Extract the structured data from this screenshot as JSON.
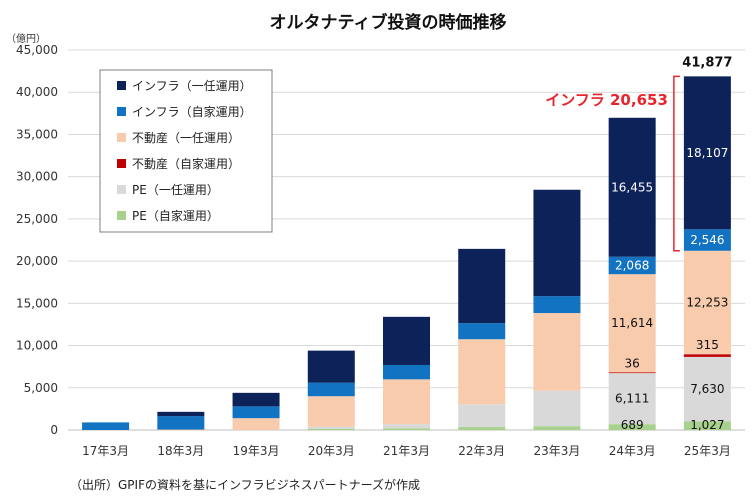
{
  "chart_data": {
    "type": "bar",
    "stacked": true,
    "title": "オルタナティブ投資の時価推移",
    "unit_label": "（億円）",
    "categories": [
      "17年3月",
      "18年3月",
      "19年3月",
      "20年3月",
      "21年3月",
      "22年3月",
      "23年3月",
      "24年3月",
      "25年3月"
    ],
    "ylim": [
      0,
      45000
    ],
    "yticks": [
      "0",
      "5,000",
      "10,000",
      "15,000",
      "20,000",
      "25,000",
      "30,000",
      "35,000",
      "40,000",
      "45,000"
    ],
    "grid": true,
    "legend_position": "top-left",
    "series": [
      {
        "name": "PE（自家運用）",
        "color": "#a9d18e",
        "values": [
          0,
          0,
          0,
          150,
          200,
          350,
          450,
          689,
          1027
        ]
      },
      {
        "name": "PE（一任運用）",
        "color": "#d9d9d9",
        "values": [
          0,
          0,
          0,
          250,
          500,
          2700,
          4200,
          6111,
          7630
        ]
      },
      {
        "name": "不動産（自家運用）",
        "color": "#c00000",
        "values": [
          0,
          0,
          0,
          0,
          0,
          0,
          0,
          36,
          315
        ]
      },
      {
        "name": "不動産（一任運用）",
        "color": "#f8cbad",
        "values": [
          0,
          50,
          1400,
          3600,
          5300,
          7700,
          9200,
          11614,
          12253
        ]
      },
      {
        "name": "インフラ（自家運用）",
        "color": "#1273c2",
        "values": [
          900,
          1600,
          1400,
          1600,
          1700,
          1900,
          2000,
          2068,
          2546
        ]
      },
      {
        "name": "インフラ（一任運用）",
        "color": "#0d2259",
        "values": [
          0,
          500,
          1600,
          3800,
          5700,
          8800,
          12600,
          16455,
          18107
        ]
      }
    ],
    "data_labels": [
      {
        "category": "24年3月",
        "series": "PE（自家運用）",
        "text": "689"
      },
      {
        "category": "24年3月",
        "series": "PE（一任運用）",
        "text": "6,111"
      },
      {
        "category": "24年3月",
        "series": "不動産（自家運用）",
        "text": "36"
      },
      {
        "category": "24年3月",
        "series": "不動産（一任運用）",
        "text": "11,614"
      },
      {
        "category": "24年3月",
        "series": "インフラ（自家運用）",
        "text": "2,068"
      },
      {
        "category": "24年3月",
        "series": "インフラ（一任運用）",
        "text": "16,455"
      },
      {
        "category": "25年3月",
        "series": "PE（自家運用）",
        "text": "1,027"
      },
      {
        "category": "25年3月",
        "series": "PE（一任運用）",
        "text": "7,630"
      },
      {
        "category": "25年3月",
        "series": "不動産（自家運用）",
        "text": "315"
      },
      {
        "category": "25年3月",
        "series": "不動産（一任運用）",
        "text": "12,253"
      },
      {
        "category": "25年3月",
        "series": "インフラ（自家運用）",
        "text": "2,546"
      },
      {
        "category": "25年3月",
        "series": "インフラ（一任運用）",
        "text": "18,107"
      }
    ],
    "total_label": {
      "category": "25年3月",
      "text": "41,877"
    },
    "callout": {
      "text": "インフラ 20,653",
      "color": "#e8242c"
    },
    "legend_order": [
      "インフラ（一任運用）",
      "インフラ（自家運用）",
      "不動産（一任運用）",
      "不動産（自家運用）",
      "PE（一任運用）",
      "PE（自家運用）"
    ]
  },
  "source_note": "（出所）GPIFの資料を基にインフラビジネスパートナーズが作成"
}
